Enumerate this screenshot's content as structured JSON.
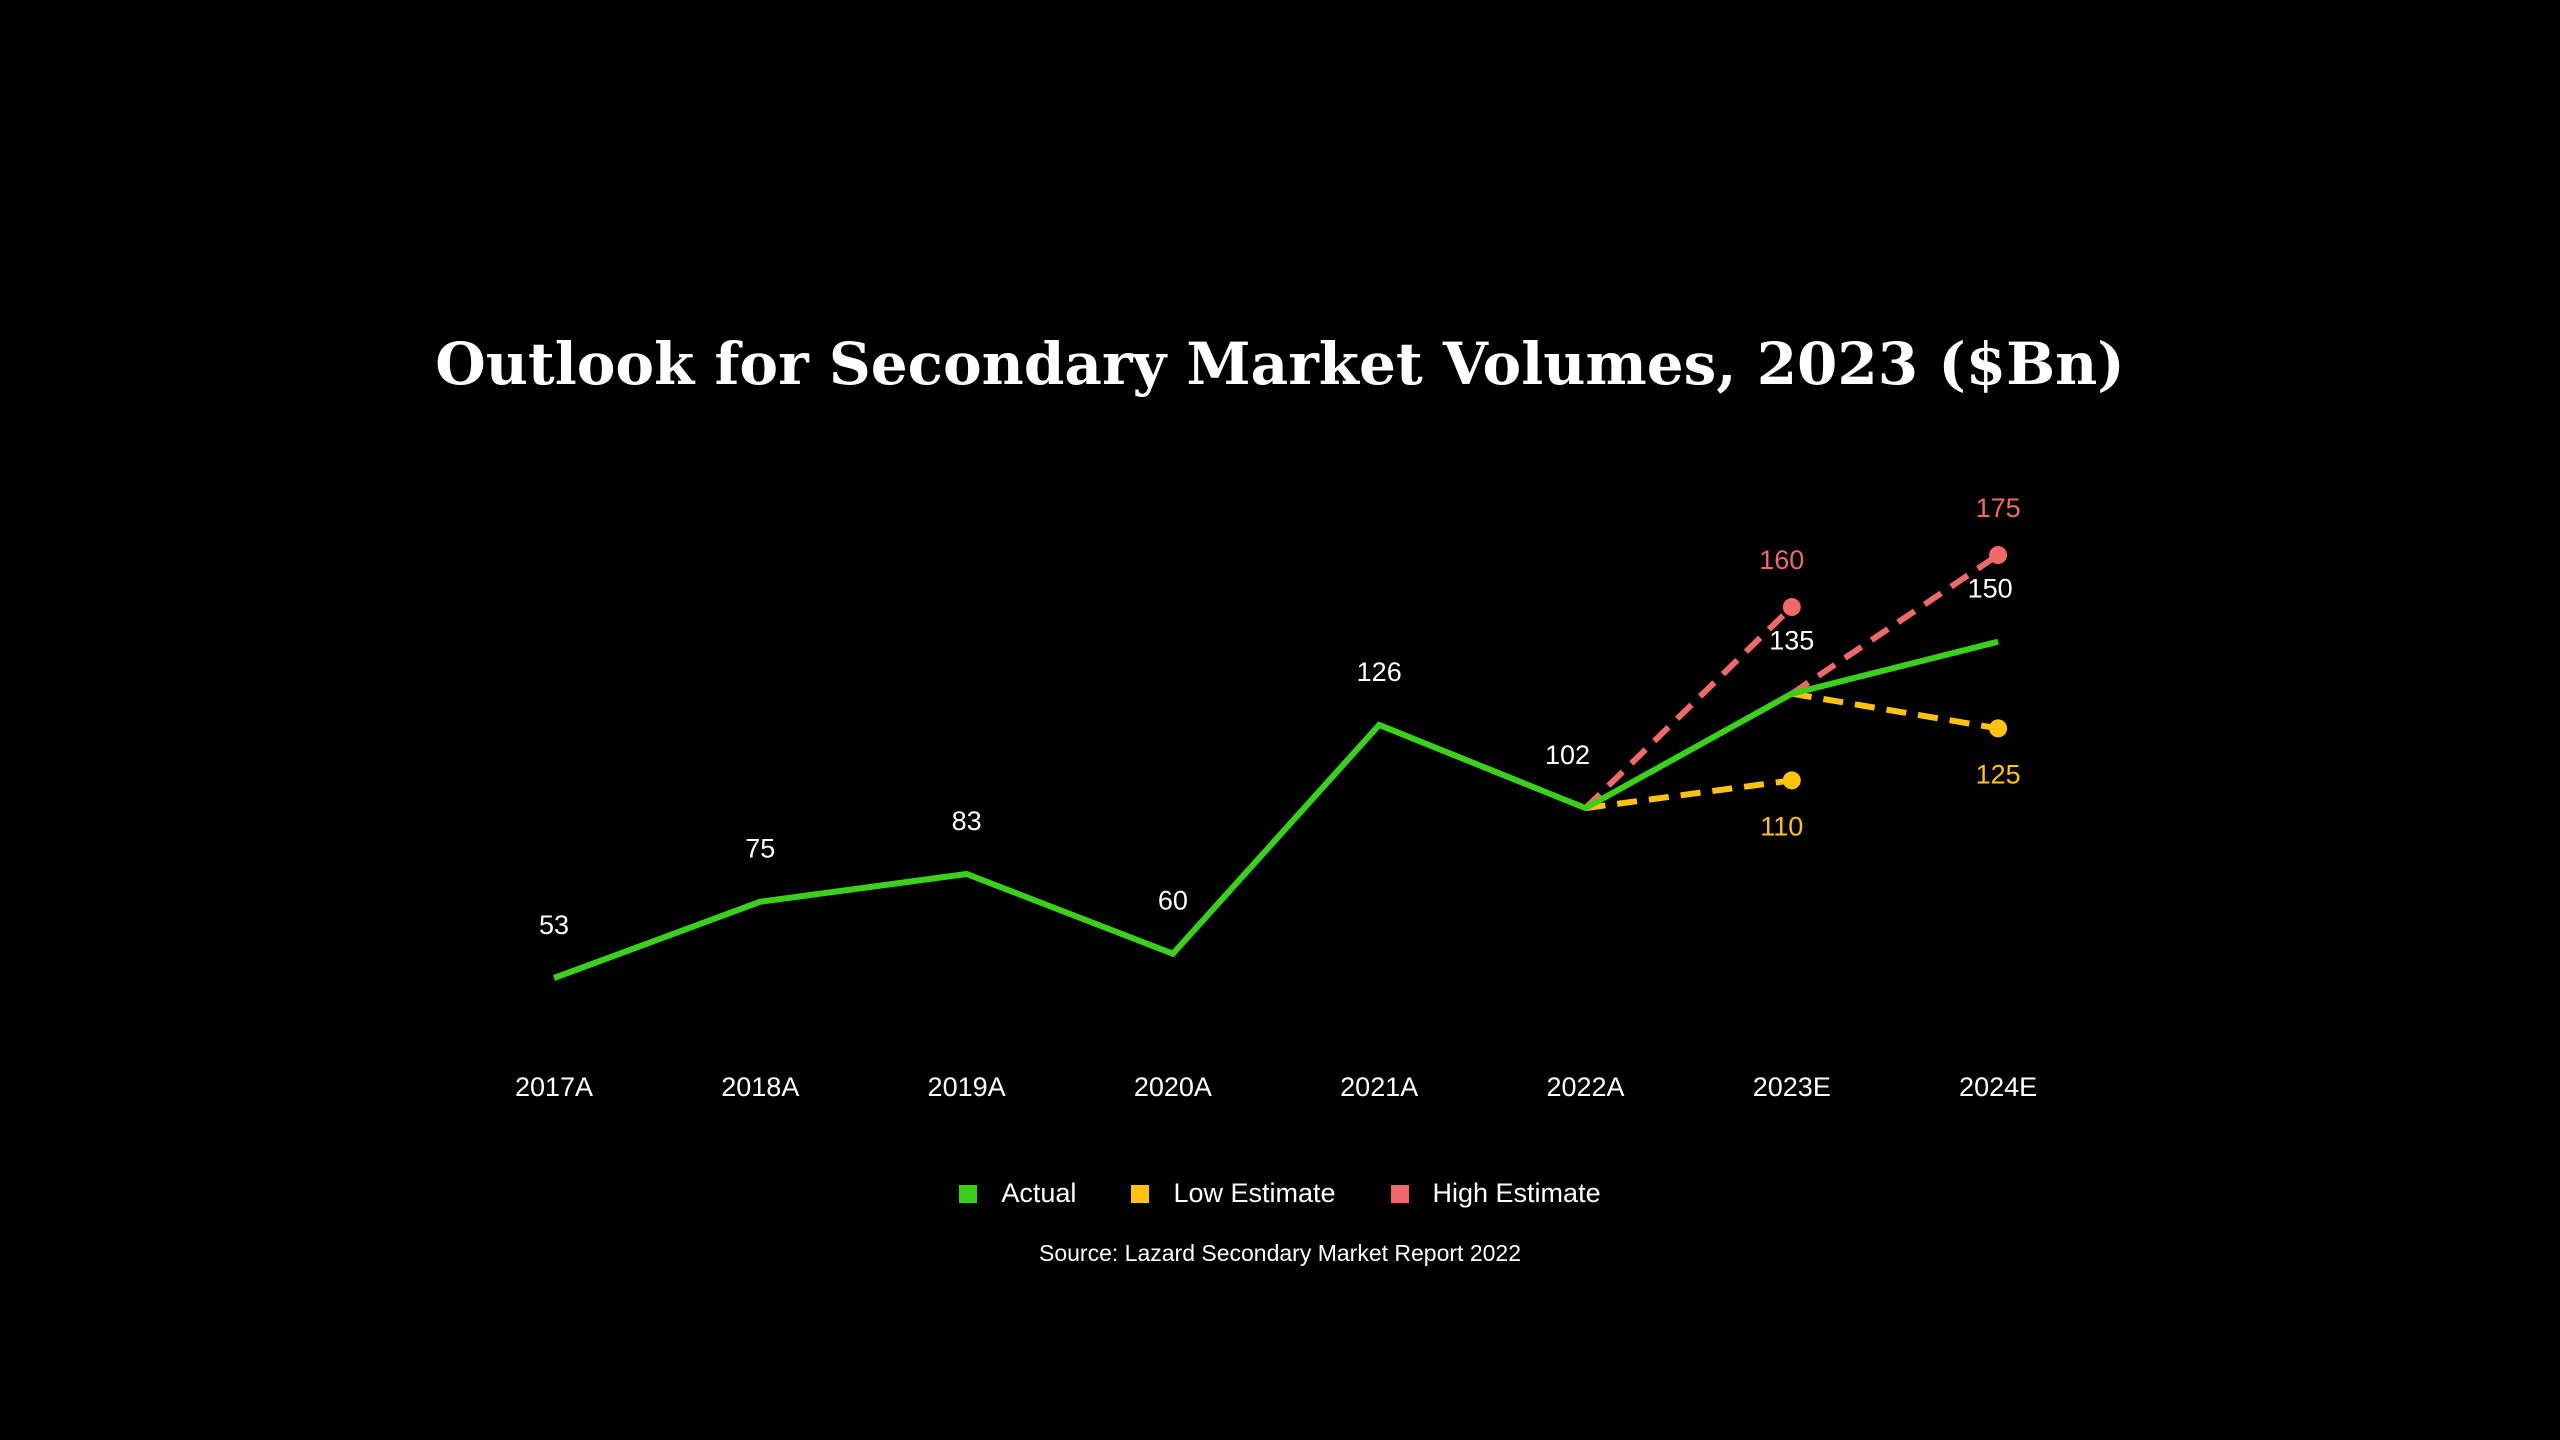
{
  "chart_data": {
    "type": "line",
    "title": "Outlook for Secondary Market Volumes, 2023 ($Bn)",
    "categories": [
      "2017A",
      "2018A",
      "2019A",
      "2020A",
      "2021A",
      "2022A",
      "2023E",
      "2024E"
    ],
    "series": [
      {
        "name": "Actual",
        "color": "#3ad11a",
        "style": "solid",
        "values": [
          53,
          75,
          83,
          60,
          126,
          102,
          135,
          150
        ]
      },
      {
        "name": "Low Estimate",
        "color": "#ffc20e",
        "style": "dashed",
        "segments": [
          [
            [
              "2022A",
              102
            ],
            [
              "2023E",
              110
            ]
          ],
          [
            [
              "2023E",
              135
            ],
            [
              "2024E",
              125
            ]
          ]
        ]
      },
      {
        "name": "High Estimate",
        "color": "#f06868",
        "style": "dashed",
        "segments": [
          [
            [
              "2022A",
              102
            ],
            [
              "2023E",
              160
            ]
          ],
          [
            [
              "2023E",
              135
            ],
            [
              "2024E",
              175
            ]
          ]
        ]
      }
    ],
    "xlabel": "",
    "ylabel": "",
    "grid": false,
    "legend": "bottom-center",
    "source": "Source: Lazard Secondary Market Report 2022"
  }
}
